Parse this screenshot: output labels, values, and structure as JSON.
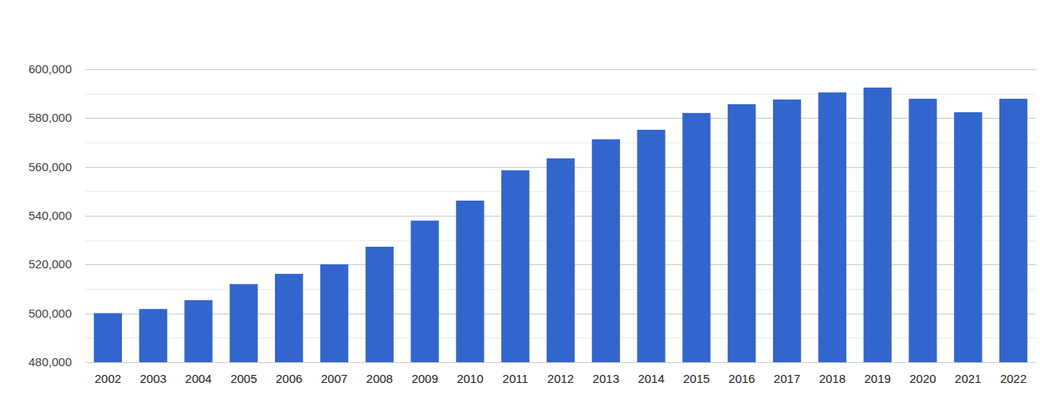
{
  "chart_data": {
    "type": "bar",
    "categories": [
      "2002",
      "2003",
      "2004",
      "2005",
      "2006",
      "2007",
      "2008",
      "2009",
      "2010",
      "2011",
      "2012",
      "2013",
      "2014",
      "2015",
      "2016",
      "2017",
      "2018",
      "2019",
      "2020",
      "2021",
      "2022"
    ],
    "values": [
      500100,
      501800,
      505400,
      512000,
      516200,
      520100,
      527300,
      538000,
      546200,
      558600,
      563500,
      571300,
      575200,
      582100,
      585700,
      587600,
      590500,
      592500,
      587900,
      582400,
      587900
    ],
    "color": "#3366cc",
    "ylim": [
      480000,
      600000
    ],
    "yticks": [
      {
        "value": 480000,
        "label": "480,000"
      },
      {
        "value": 500000,
        "label": "500,000"
      },
      {
        "value": 520000,
        "label": "520,000"
      },
      {
        "value": 540000,
        "label": "540,000"
      },
      {
        "value": 560000,
        "label": "560,000"
      },
      {
        "value": 580000,
        "label": "580,000"
      },
      {
        "value": 600000,
        "label": "600,000"
      }
    ],
    "grid": true
  }
}
